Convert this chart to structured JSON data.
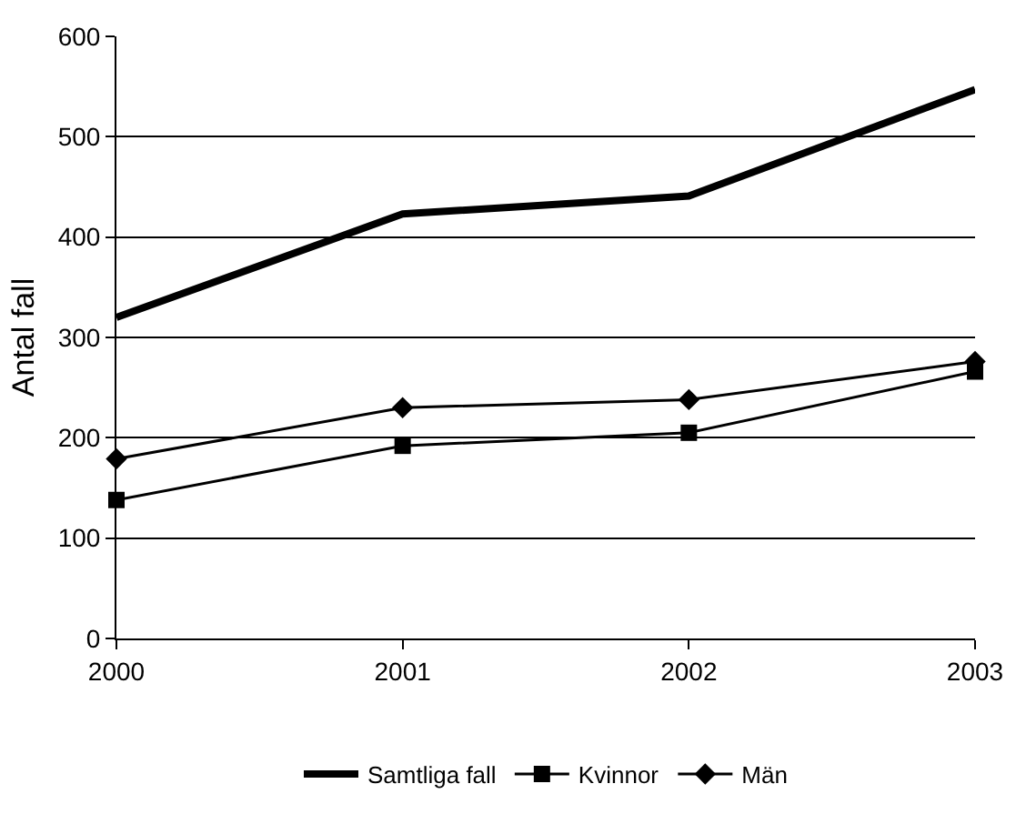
{
  "chart_data": {
    "type": "line",
    "ylabel": "Antal fall",
    "x": [
      2000,
      2001,
      2002,
      2003
    ],
    "xlim": [
      2000,
      2003
    ],
    "xticks": [
      2000,
      2001,
      2002,
      2003
    ],
    "ylim": [
      0,
      600
    ],
    "yticks": [
      0,
      100,
      200,
      300,
      400,
      500,
      600
    ],
    "grid": "y",
    "legend": "bottom",
    "series": [
      {
        "name": "Samtliga fall",
        "color": "#000000",
        "marker": "none",
        "values": [
          320,
          423,
          441,
          547
        ]
      },
      {
        "name": "Kvinnor",
        "color": "#000000",
        "marker": "square",
        "values": [
          138,
          192,
          205,
          266
        ]
      },
      {
        "name": "Män",
        "color": "#000000",
        "marker": "diamond",
        "values": [
          179,
          230,
          238,
          276
        ]
      }
    ]
  }
}
